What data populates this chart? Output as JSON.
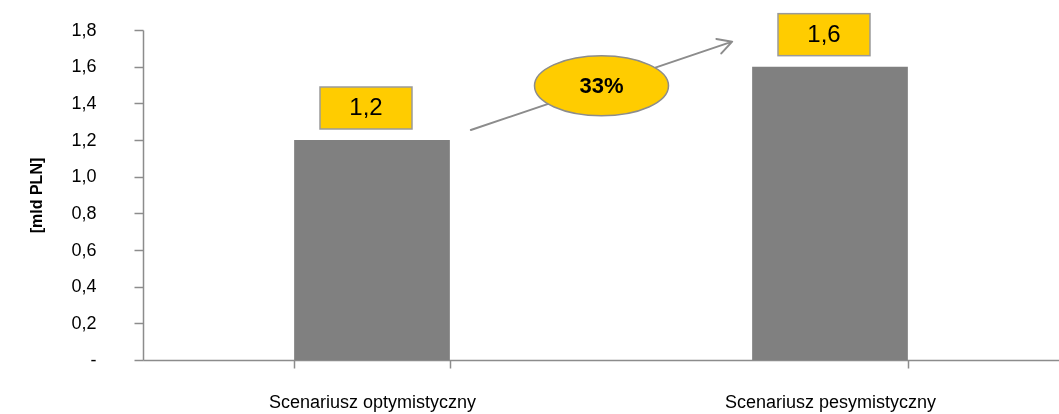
{
  "chart_data": {
    "type": "bar",
    "ylabel": "[mld PLN]",
    "categories": [
      "Scenariusz optymistyczny",
      "Scenariusz pesymistyczny"
    ],
    "values": [
      1.2,
      1.6
    ],
    "color": "#808080",
    "value_labels": [
      "1,2",
      "1,6"
    ],
    "ylim": [
      0,
      1.8
    ],
    "yticks": [
      {
        "value": 0,
        "label": "-"
      },
      {
        "value": 0.2,
        "label": "0,2"
      },
      {
        "value": 0.4,
        "label": "0,4"
      },
      {
        "value": 0.6,
        "label": "0,6"
      },
      {
        "value": 0.8,
        "label": "0,8"
      },
      {
        "value": 1.0,
        "label": "1,0"
      },
      {
        "value": 1.2,
        "label": "1,2"
      },
      {
        "value": 1.4,
        "label": "1,4"
      },
      {
        "value": 1.6,
        "label": "1,6"
      },
      {
        "value": 1.8,
        "label": "1,8"
      }
    ],
    "annotations": [
      "33%"
    ],
    "grid": false
  }
}
